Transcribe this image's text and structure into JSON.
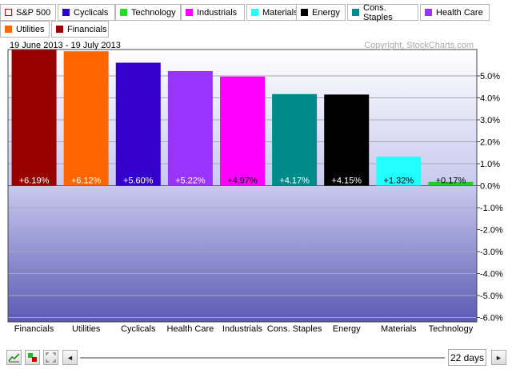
{
  "legend": [
    {
      "label": "S&P 500",
      "color": "#ffffff",
      "border": "#cc0000"
    },
    {
      "label": "Cyclicals",
      "color": "#2b00cc"
    },
    {
      "label": "Technology",
      "color": "#22dd22"
    },
    {
      "label": "Industrials",
      "color": "#ff00ff"
    },
    {
      "label": "Materials",
      "color": "#22ffff"
    },
    {
      "label": "Energy",
      "color": "#000000"
    },
    {
      "label": "Cons. Staples",
      "color": "#008b8b"
    },
    {
      "label": "Health Care",
      "color": "#9933ff"
    },
    {
      "label": "Utilities",
      "color": "#ff6600"
    },
    {
      "label": "Financials",
      "color": "#990000"
    }
  ],
  "chart_data": {
    "type": "bar",
    "title": "19 June 2013 - 19 July 2013",
    "copyright": "Copyright, StockCharts.com",
    "categories": [
      "Financials",
      "Utilities",
      "Cyclicals",
      "Health Care",
      "Industrials",
      "Cons. Staples",
      "Energy",
      "Materials",
      "Technology"
    ],
    "values": [
      6.19,
      6.12,
      5.6,
      5.22,
      4.97,
      4.17,
      4.15,
      1.32,
      0.17
    ],
    "value_labels": [
      "+6.19%",
      "+6.12%",
      "+5.60%",
      "+5.22%",
      "+4.97%",
      "+4.17%",
      "+4.15%",
      "+1.32%",
      "+0.17%"
    ],
    "colors": [
      "#990000",
      "#ff6600",
      "#3300cc",
      "#9933ff",
      "#ff00ff",
      "#008b8b",
      "#000000",
      "#22ffff",
      "#22cc22"
    ],
    "label_colors": [
      "#ffffff",
      "#ffffff",
      "#ffffff",
      "#ffffff",
      "#000000",
      "#ffffff",
      "#ffffff",
      "#000000",
      "#000000"
    ],
    "ylim": [
      -6.2,
      6.2
    ],
    "yticks": [
      5,
      4,
      3,
      2,
      1,
      0,
      -1,
      -2,
      -3,
      -4,
      -5,
      -6
    ],
    "ytick_labels": [
      "5.0%",
      "4.0%",
      "3.0%",
      "2.0%",
      "1.0%",
      "0.0%",
      "-1.0%",
      "-2.0%",
      "-3.0%",
      "-4.0%",
      "-5.0%",
      "-6.0%"
    ],
    "grid": true
  },
  "controls": {
    "icons": [
      "line-chart-icon",
      "stoplight-icon",
      "fullscreen-icon",
      "left-arrow-icon",
      "right-arrow-icon"
    ],
    "left_arrow": "◄",
    "right_arrow": "►",
    "period": "22 days"
  }
}
